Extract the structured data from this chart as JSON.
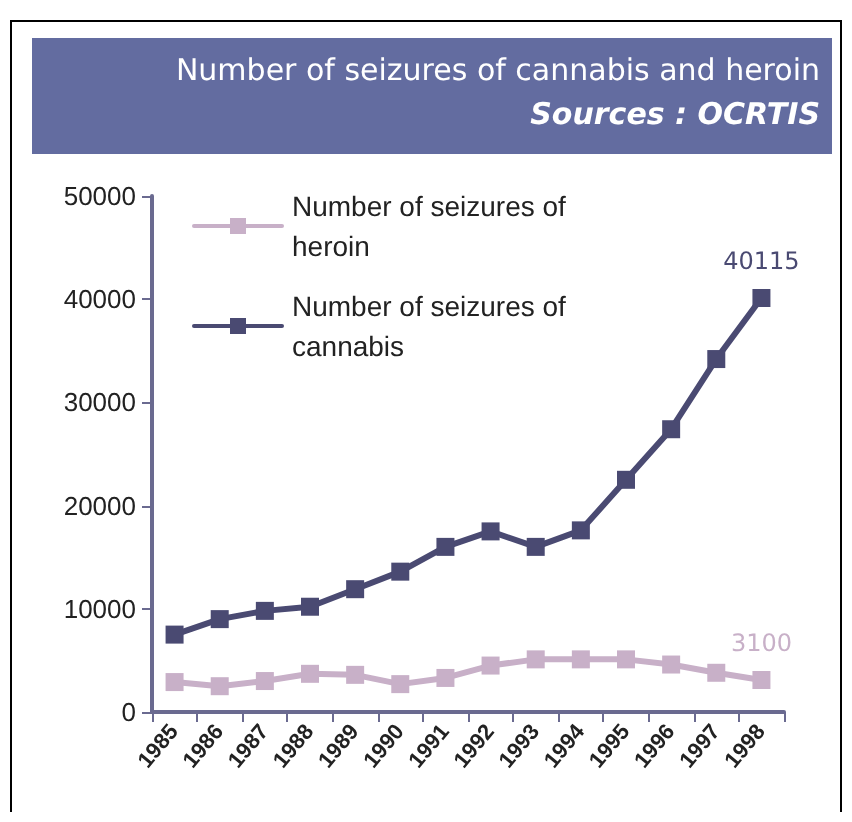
{
  "chart_data": {
    "type": "line",
    "title": "Number of seizures of cannabis and heroin",
    "subtitle": "Sources : OCRTIS",
    "categories": [
      "1985",
      "1986",
      "1987",
      "1988",
      "1989",
      "1990",
      "1991",
      "1992",
      "1993",
      "1994",
      "1995",
      "1996",
      "1997",
      "1998"
    ],
    "series": [
      {
        "name": "Number of seizures of heroin",
        "color": "#c8b0c8",
        "values": [
          2900,
          2500,
          3000,
          3700,
          3600,
          2700,
          3300,
          4500,
          5100,
          5100,
          5100,
          4600,
          3800,
          3100
        ],
        "value_labels": [
          null,
          null,
          null,
          null,
          null,
          null,
          null,
          null,
          null,
          null,
          null,
          null,
          null,
          "3100"
        ]
      },
      {
        "name": "Number of seizures of cannabis",
        "color": "#4a4a72",
        "values": [
          7500,
          9000,
          9800,
          10200,
          11900,
          13600,
          16000,
          17500,
          16000,
          17600,
          22500,
          27400,
          34200,
          40115
        ],
        "value_labels": [
          null,
          null,
          null,
          null,
          null,
          null,
          null,
          null,
          null,
          null,
          null,
          null,
          null,
          "40115"
        ]
      }
    ],
    "ylim": [
      0,
      50000
    ],
    "yticks": [
      0,
      10000,
      20000,
      30000,
      40000,
      50000
    ],
    "grid": false,
    "legend": "top left",
    "marker": "square",
    "line_style": "solid"
  }
}
